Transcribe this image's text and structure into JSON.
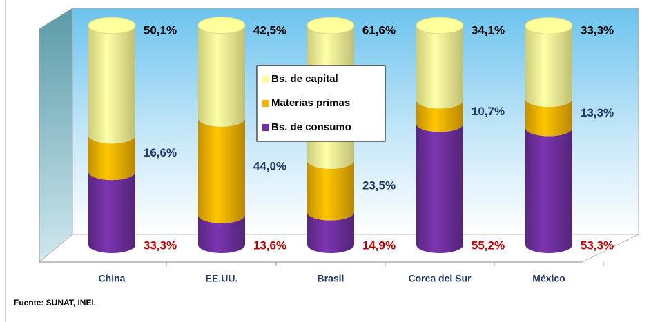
{
  "chart_data": {
    "type": "stacked-cylinder",
    "categories": [
      "China",
      "EE.UU.",
      "Brasil",
      "Corea del Sur",
      "México"
    ],
    "ylim": [
      0,
      100
    ],
    "series": [
      {
        "name": "Bs. de consumo",
        "color": "#7030a0",
        "label_color": "#c00000",
        "values": [
          33.3,
          13.6,
          14.9,
          55.2,
          53.3
        ],
        "value_labels": [
          "33,3%",
          "13,6%",
          "14,9%",
          "55,2%",
          "53,3%"
        ]
      },
      {
        "name": "Materias primas",
        "color": "#f5b400",
        "label_color": "#1f3864",
        "values": [
          16.6,
          44.0,
          23.5,
          10.7,
          13.3
        ],
        "value_labels": [
          "16,6%",
          "44,0%",
          "23,5%",
          "10,7%",
          "13,3%"
        ]
      },
      {
        "name": "Bs. de capital",
        "color": "#ffff99",
        "label_color": "#000000",
        "values": [
          50.1,
          42.5,
          61.6,
          34.1,
          33.3
        ],
        "value_labels": [
          "50,1%",
          "42,5%",
          "61,6%",
          "34,1%",
          "33,3%"
        ]
      }
    ],
    "source": "Fuente: SUNAT, INEI."
  }
}
